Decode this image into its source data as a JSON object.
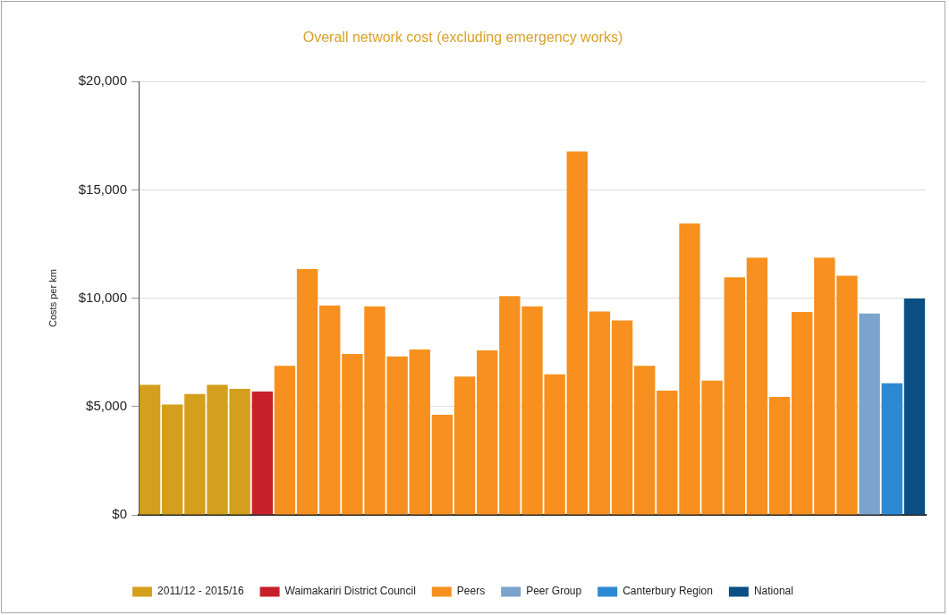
{
  "chart_data": {
    "type": "bar",
    "title": "Overall network cost (excluding emergency works)",
    "ylabel": "Costs per km",
    "categories": [
      null,
      null,
      null,
      null,
      null,
      null,
      null,
      null,
      null,
      null,
      null,
      null,
      null,
      null,
      null,
      null,
      null,
      null,
      null,
      null,
      null,
      null,
      null,
      null,
      null,
      null,
      null,
      null,
      null,
      null,
      null,
      null,
      null,
      null,
      null
    ],
    "series": [
      {
        "name": "2011/12 - 2015/16",
        "color": "#d49f1c",
        "values": [
          6000,
          5100,
          5580,
          6000,
          5820,
          null,
          null,
          null,
          null,
          null,
          null,
          null,
          null,
          null,
          null,
          null,
          null,
          null,
          null,
          null,
          null,
          null,
          null,
          null,
          null,
          null,
          null,
          null,
          null,
          null,
          null,
          null,
          null,
          null,
          null
        ]
      },
      {
        "name": "Waimakariri District Council",
        "color": "#c8202b",
        "values": [
          null,
          null,
          null,
          null,
          null,
          5690,
          null,
          null,
          null,
          null,
          null,
          null,
          null,
          null,
          null,
          null,
          null,
          null,
          null,
          null,
          null,
          null,
          null,
          null,
          null,
          null,
          null,
          null,
          null,
          null,
          null,
          null,
          null,
          null,
          null
        ]
      },
      {
        "name": "Peers",
        "color": "#f7901e",
        "values": [
          null,
          null,
          null,
          null,
          null,
          null,
          6880,
          11340,
          9660,
          7430,
          9620,
          7310,
          7630,
          4620,
          6380,
          7590,
          10100,
          9620,
          6490,
          16770,
          9390,
          8970,
          6880,
          5730,
          13450,
          6200,
          10960,
          11870,
          5450,
          9360,
          11870,
          11040,
          null,
          null,
          null
        ]
      },
      {
        "name": "Peer Group",
        "color": "#7ca3cc",
        "values": [
          null,
          null,
          null,
          null,
          null,
          null,
          null,
          null,
          null,
          null,
          null,
          null,
          null,
          null,
          null,
          null,
          null,
          null,
          null,
          null,
          null,
          null,
          null,
          null,
          null,
          null,
          null,
          null,
          null,
          null,
          null,
          null,
          9290,
          null,
          null
        ]
      },
      {
        "name": "Canterbury Region",
        "color": "#2b8ad3",
        "values": [
          null,
          null,
          null,
          null,
          null,
          null,
          null,
          null,
          null,
          null,
          null,
          null,
          null,
          null,
          null,
          null,
          null,
          null,
          null,
          null,
          null,
          null,
          null,
          null,
          null,
          null,
          null,
          null,
          null,
          null,
          null,
          null,
          null,
          6070,
          null
        ]
      },
      {
        "name": "National",
        "color": "#0b4f85",
        "values": [
          null,
          null,
          null,
          null,
          null,
          null,
          null,
          null,
          null,
          null,
          null,
          null,
          null,
          null,
          null,
          null,
          null,
          null,
          null,
          null,
          null,
          null,
          null,
          null,
          null,
          null,
          null,
          null,
          null,
          null,
          null,
          null,
          null,
          null,
          9980
        ]
      }
    ],
    "ylim": [
      0,
      20000
    ],
    "yticks": [
      {
        "value": 0,
        "label": "$0"
      },
      {
        "value": 5000,
        "label": "$5,000"
      },
      {
        "value": 10000,
        "label": "$10,000"
      },
      {
        "value": 15000,
        "label": "$15,000"
      },
      {
        "value": 20000,
        "label": "$20,000"
      }
    ],
    "grid": "y",
    "legend": "bottom",
    "tick_labels": "y"
  }
}
